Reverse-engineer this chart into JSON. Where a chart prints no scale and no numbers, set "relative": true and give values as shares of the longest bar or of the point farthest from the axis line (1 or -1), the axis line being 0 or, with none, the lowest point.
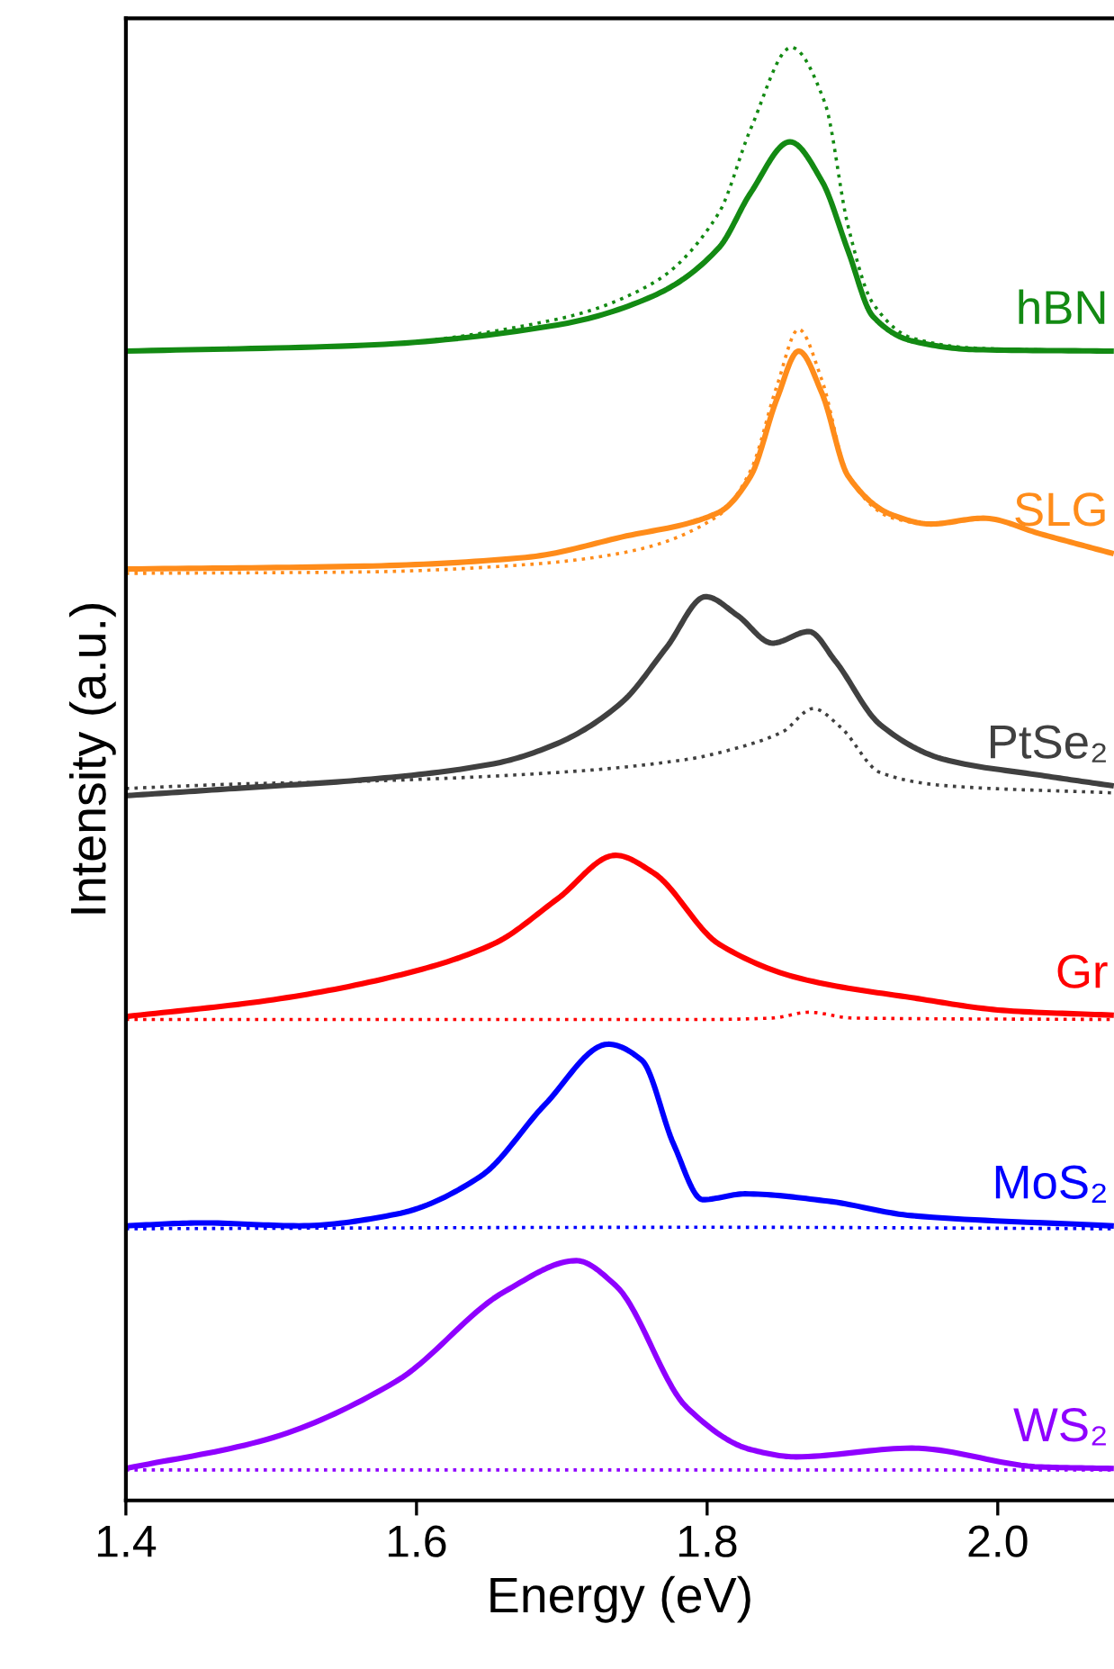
{
  "chart_data": {
    "type": "line",
    "relative": true,
    "xlabel": "Energy (eV)",
    "ylabel": "Intensity (a.u.)",
    "xlim": [
      1.4,
      2.08
    ],
    "xticks": [
      1.4,
      1.6,
      1.8,
      {
        "value": 2,
        "label": "2.0"
      }
    ],
    "grid": false,
    "legend": false,
    "marker": "none",
    "tick_labels": "x",
    "series": [
      {
        "name": "hBN",
        "color": "#138a13",
        "line_style": "solid",
        "x": [
          1.4,
          1.564,
          1.697,
          1.763,
          1.808,
          1.83,
          1.857,
          1.879,
          1.897,
          1.914,
          1.941,
          1.985,
          2.078
        ],
        "values": [
          0.791,
          0.795,
          0.809,
          0.829,
          0.862,
          0.9,
          0.935,
          0.908,
          0.86,
          0.815,
          0.798,
          0.792,
          0.791
        ]
      },
      {
        "color": "#138a13",
        "line_style": "dotted",
        "x": [
          1.4,
          1.564,
          1.697,
          1.763,
          1.808,
          1.83,
          1.858,
          1.881,
          1.897,
          1.914,
          1.941,
          1.985,
          2.078
        ],
        "values": [
          0.791,
          0.795,
          0.813,
          0.838,
          0.886,
          0.944,
          1.0,
          0.962,
          0.877,
          0.824,
          0.8,
          0.793,
          0.791
        ]
      },
      {
        "name": "SLG",
        "color": "#ff8c1a",
        "line_style": "solid",
        "x": [
          1.4,
          1.564,
          1.675,
          1.741,
          1.808,
          1.83,
          1.848,
          1.863,
          1.879,
          1.897,
          1.928,
          1.954,
          1.99,
          2.03,
          2.078
        ],
        "values": [
          0.641,
          0.643,
          0.649,
          0.663,
          0.68,
          0.705,
          0.758,
          0.791,
          0.762,
          0.705,
          0.678,
          0.672,
          0.676,
          0.665,
          0.652
        ]
      },
      {
        "color": "#ff8c1a",
        "line_style": "dotted",
        "x": [
          1.4,
          1.564,
          1.675,
          1.741,
          1.808,
          1.83,
          1.848,
          1.863,
          1.879,
          1.897,
          1.928,
          1.954,
          1.99,
          2.03,
          2.078
        ],
        "values": [
          0.638,
          0.639,
          0.644,
          0.652,
          0.678,
          0.709,
          0.767,
          0.806,
          0.771,
          0.705,
          0.676,
          0.672,
          0.676,
          0.665,
          0.652
        ]
      },
      {
        "name": "PtSe₂",
        "color": "#404040",
        "line_style": "solid",
        "x": [
          1.4,
          1.475,
          1.564,
          1.653,
          1.697,
          1.741,
          1.772,
          1.799,
          1.821,
          1.845,
          1.87,
          1.888,
          1.919,
          1.963,
          2.03,
          2.078
        ],
        "values": [
          0.485,
          0.49,
          0.496,
          0.507,
          0.521,
          0.549,
          0.587,
          0.622,
          0.609,
          0.59,
          0.598,
          0.578,
          0.534,
          0.51,
          0.499,
          0.492
        ]
      },
      {
        "color": "#404040",
        "line_style": "dotted",
        "x": [
          1.4,
          1.475,
          1.564,
          1.697,
          1.786,
          1.821,
          1.852,
          1.873,
          1.892,
          1.919,
          1.963,
          2.078
        ],
        "values": [
          0.49,
          0.493,
          0.495,
          0.501,
          0.51,
          0.518,
          0.529,
          0.545,
          0.532,
          0.501,
          0.492,
          0.487
        ]
      },
      {
        "name": "Gr",
        "color": "#ff0000",
        "line_style": "solid",
        "x": [
          1.4,
          1.497,
          1.586,
          1.653,
          1.697,
          1.737,
          1.763,
          1.808,
          1.865,
          1.941,
          2.007,
          2.078
        ],
        "values": [
          0.333,
          0.344,
          0.361,
          0.383,
          0.414,
          0.444,
          0.432,
          0.383,
          0.359,
          0.346,
          0.337,
          0.334
        ]
      },
      {
        "color": "#ff0000",
        "line_style": "dotted",
        "x": [
          1.4,
          1.8,
          1.845,
          1.87,
          1.9,
          2.078
        ],
        "values": [
          0.331,
          0.331,
          0.332,
          0.336,
          0.332,
          0.331
        ]
      },
      {
        "name": "MoS₂",
        "color": "#0000ff",
        "line_style": "solid",
        "x": [
          1.4,
          1.453,
          1.519,
          1.586,
          1.644,
          1.688,
          1.732,
          1.755,
          1.777,
          1.797,
          1.826,
          1.883,
          1.941,
          2.078
        ],
        "values": [
          0.189,
          0.191,
          0.189,
          0.197,
          0.223,
          0.272,
          0.314,
          0.303,
          0.245,
          0.207,
          0.211,
          0.206,
          0.196,
          0.189
        ]
      },
      {
        "color": "#0000ff",
        "line_style": "dotted",
        "x": [
          1.4,
          1.8,
          2.078
        ],
        "values": [
          0.187,
          0.188,
          0.187
        ]
      },
      {
        "name": "WS₂",
        "color": "#8f00ff",
        "line_style": "solid",
        "x": [
          1.4,
          1.497,
          1.586,
          1.661,
          1.71,
          1.737,
          1.786,
          1.83,
          1.861,
          1.941,
          2.03,
          2.078
        ],
        "values": [
          0.022,
          0.042,
          0.082,
          0.144,
          0.165,
          0.148,
          0.064,
          0.035,
          0.03,
          0.036,
          0.023,
          0.022
        ]
      },
      {
        "color": "#8f00ff",
        "line_style": "dotted",
        "x": [
          1.4,
          2.078
        ],
        "values": [
          0.021,
          0.021
        ]
      }
    ]
  }
}
